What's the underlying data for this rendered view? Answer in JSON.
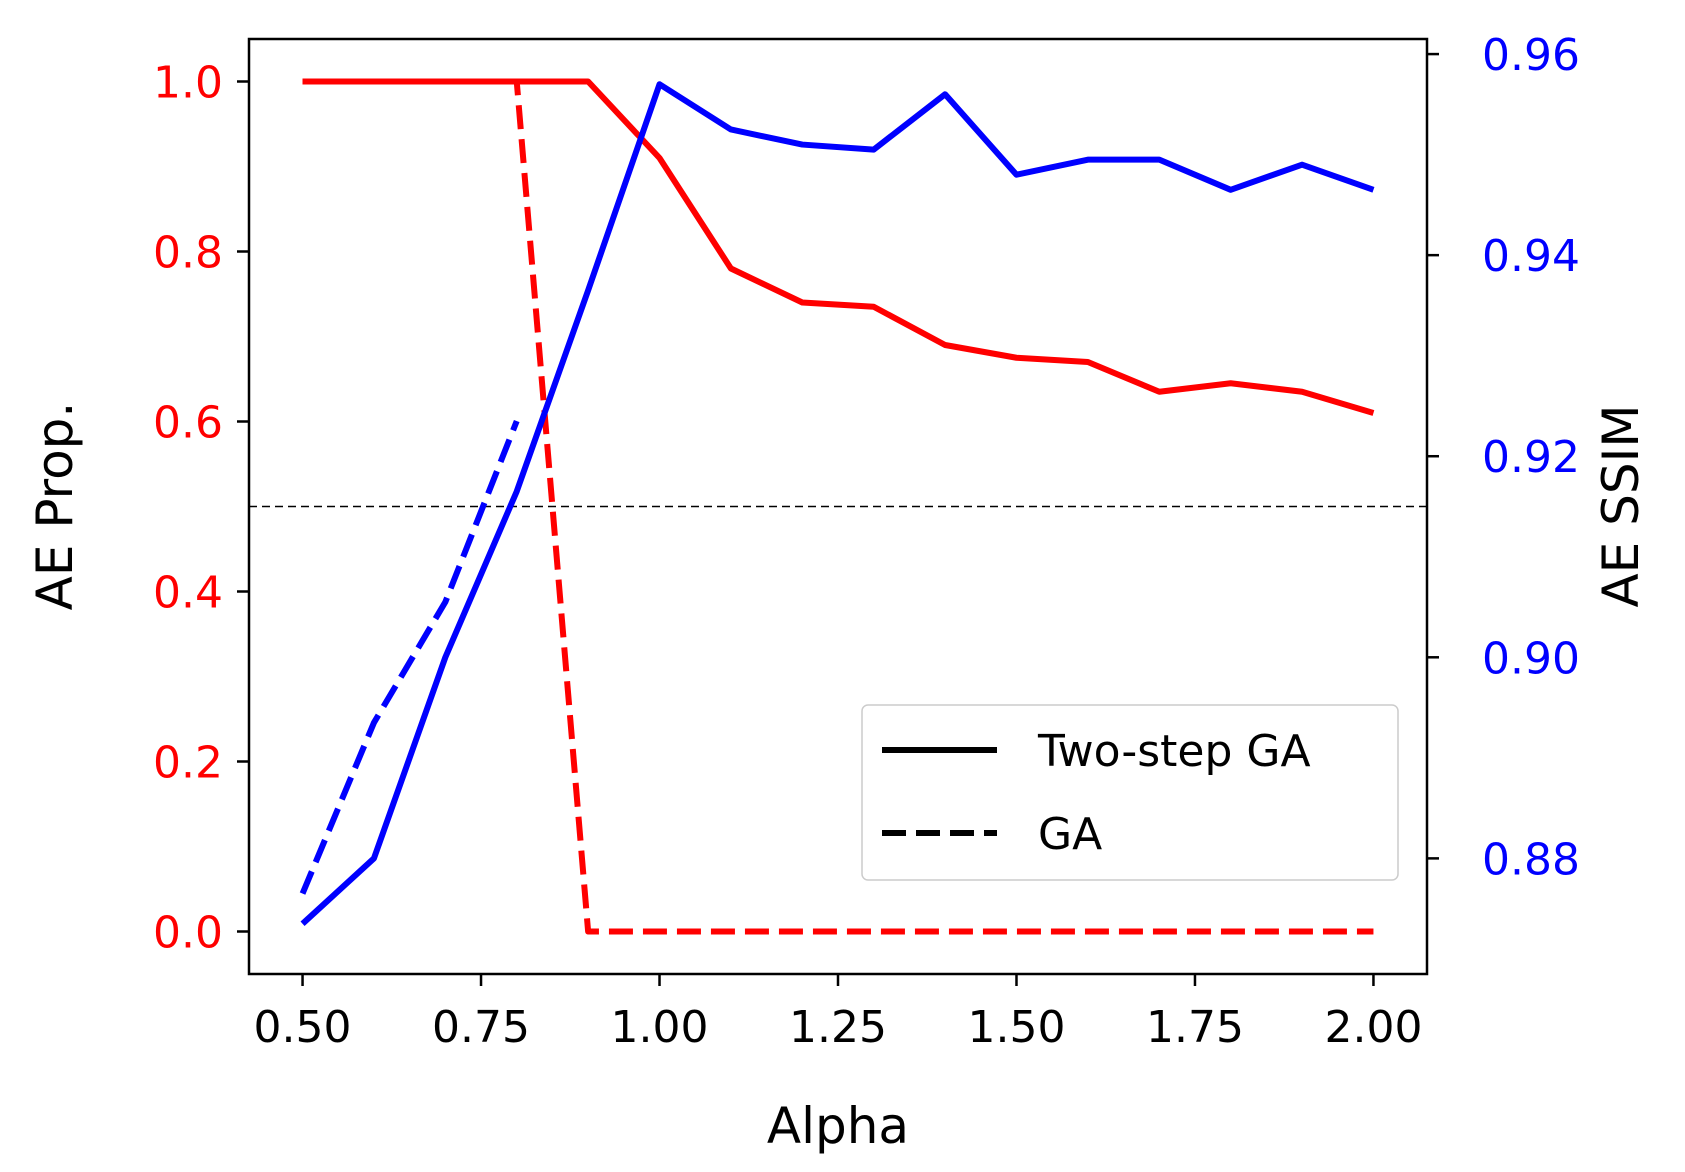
{
  "chart_data": {
    "type": "line",
    "title": "",
    "xlabel": "Alpha",
    "ylabel_left": "AE Prop.",
    "ylabel_right": "AE SSIM",
    "xlim": [
      0.425,
      2.075
    ],
    "ylim_left": [
      -0.05,
      1.05
    ],
    "ylim_right": [
      0.8685,
      0.9615
    ],
    "x_ticks": [
      0.5,
      0.75,
      1.0,
      1.25,
      1.5,
      1.75,
      2.0
    ],
    "x_tick_labels": [
      "0.50",
      "0.75",
      "1.00",
      "1.25",
      "1.50",
      "1.75",
      "2.00"
    ],
    "y_left_ticks": [
      0.0,
      0.2,
      0.4,
      0.6,
      0.8,
      1.0
    ],
    "y_left_tick_labels": [
      "0.0",
      "0.2",
      "0.4",
      "0.6",
      "0.8",
      "1.0"
    ],
    "y_right_ticks": [
      0.88,
      0.9,
      0.92,
      0.94,
      0.96
    ],
    "y_right_tick_labels": [
      "0.88",
      "0.90",
      "0.92",
      "0.94",
      "0.96"
    ],
    "reference_line": {
      "axis": "left",
      "y": 0.5,
      "style": "dashed",
      "color": "#000000"
    },
    "legend": {
      "location": "lower-right",
      "entries": [
        {
          "label": "Two-step GA",
          "style": "solid"
        },
        {
          "label": "GA",
          "style": "dashed"
        }
      ]
    },
    "colors": {
      "left_axis": "#ff0000",
      "right_axis": "#0000ff",
      "legend_line": "#000000"
    },
    "series": [
      {
        "name": "Two-step GA AE Prop.",
        "axis": "left",
        "color": "#ff0000",
        "style": "solid",
        "x": [
          0.5,
          0.6,
          0.7,
          0.8,
          0.9,
          1.0,
          1.1,
          1.2,
          1.3,
          1.4,
          1.5,
          1.6,
          1.7,
          1.8,
          1.9,
          2.0
        ],
        "values": [
          1.0,
          1.0,
          1.0,
          1.0,
          1.0,
          0.91,
          0.78,
          0.74,
          0.735,
          0.69,
          0.675,
          0.67,
          0.635,
          0.645,
          0.635,
          0.61
        ]
      },
      {
        "name": "GA AE Prop.",
        "axis": "left",
        "color": "#ff0000",
        "style": "dashed",
        "x": [
          0.5,
          0.6,
          0.7,
          0.8,
          0.9,
          1.0,
          1.1,
          1.2,
          1.3,
          1.4,
          1.5,
          1.6,
          1.7,
          1.8,
          1.9,
          2.0
        ],
        "values": [
          1.0,
          1.0,
          1.0,
          1.0,
          0.0,
          0.0,
          0.0,
          0.0,
          0.0,
          0.0,
          0.0,
          0.0,
          0.0,
          0.0,
          0.0,
          0.0
        ]
      },
      {
        "name": "Two-step GA AE SSIM",
        "axis": "right",
        "color": "#0000ff",
        "style": "solid",
        "x": [
          0.5,
          0.6,
          0.7,
          0.8,
          0.9,
          1.0,
          1.1,
          1.2,
          1.3,
          1.4,
          1.5,
          1.6,
          1.7,
          1.8,
          1.9,
          2.0
        ],
        "values": [
          0.8735,
          0.88,
          0.9,
          0.9165,
          0.9365,
          0.957,
          0.9525,
          0.951,
          0.9505,
          0.956,
          0.948,
          0.9495,
          0.9495,
          0.9465,
          0.949,
          0.9465
        ]
      },
      {
        "name": "GA AE SSIM",
        "axis": "right",
        "color": "#0000ff",
        "style": "dashed",
        "x": [
          0.5,
          0.6,
          0.7,
          0.8
        ],
        "values": [
          0.8765,
          0.8935,
          0.9055,
          0.9235
        ]
      }
    ]
  }
}
